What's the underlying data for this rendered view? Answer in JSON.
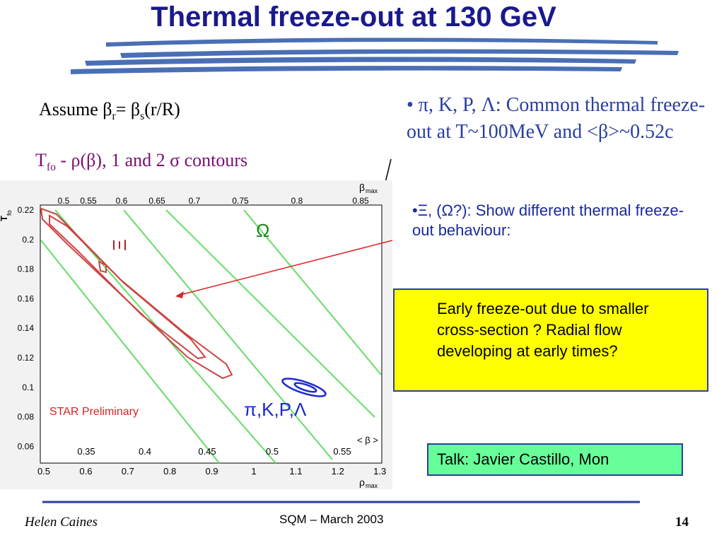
{
  "title": "Thermal freeze-out at 130 GeV",
  "assumption": [
    "Assume β",
    "r",
    "= β",
    "s",
    "(r/R)"
  ],
  "contours_label": [
    "T",
    "fo",
    " - ρ(β), 1 and 2 σ contours"
  ],
  "bullets": [
    "• π, K, P, Λ: Common thermal freeze-out at T~100MeV and <β>~0.52c",
    "•Ξ, (Ω?): Show different thermal freeze-out behaviour:"
  ],
  "callout": "Early freeze-out due to smaller cross-section ? Radial flow developing at early times?",
  "talk": "Talk: Javier Castillo, Mon",
  "plot": {
    "y_label": "T",
    "y_label_sub": "fo",
    "y_ticks": [
      "0.22",
      "0.2",
      "0.18",
      "0.16",
      "0.14",
      "0.12",
      "0.1",
      "0.08",
      "0.06"
    ],
    "x_label": "ρ",
    "x_label_sub": "max",
    "x_ticks": [
      "0.5",
      "0.6",
      "0.7",
      "0.8",
      "0.9",
      "1",
      "1.1",
      "1.2",
      "1.3"
    ],
    "top_label": "β",
    "top_label_sub": "max",
    "top_ticks": [
      "0.5",
      "0.55",
      "0.6",
      "0.65",
      "0.7",
      "0.75",
      "0.8",
      "0.85"
    ],
    "inner_label": "< β >",
    "inner_ticks": [
      "0.35",
      "0.4",
      "0.45",
      "0.5",
      "0.55"
    ],
    "annotations": [
      "Ξ",
      "Ω",
      "π,K,P,Λ",
      "STAR Preliminary"
    ]
  },
  "footer": {
    "author": "Helen Caines",
    "event": "SQM  – March 2003",
    "page": "14"
  }
}
